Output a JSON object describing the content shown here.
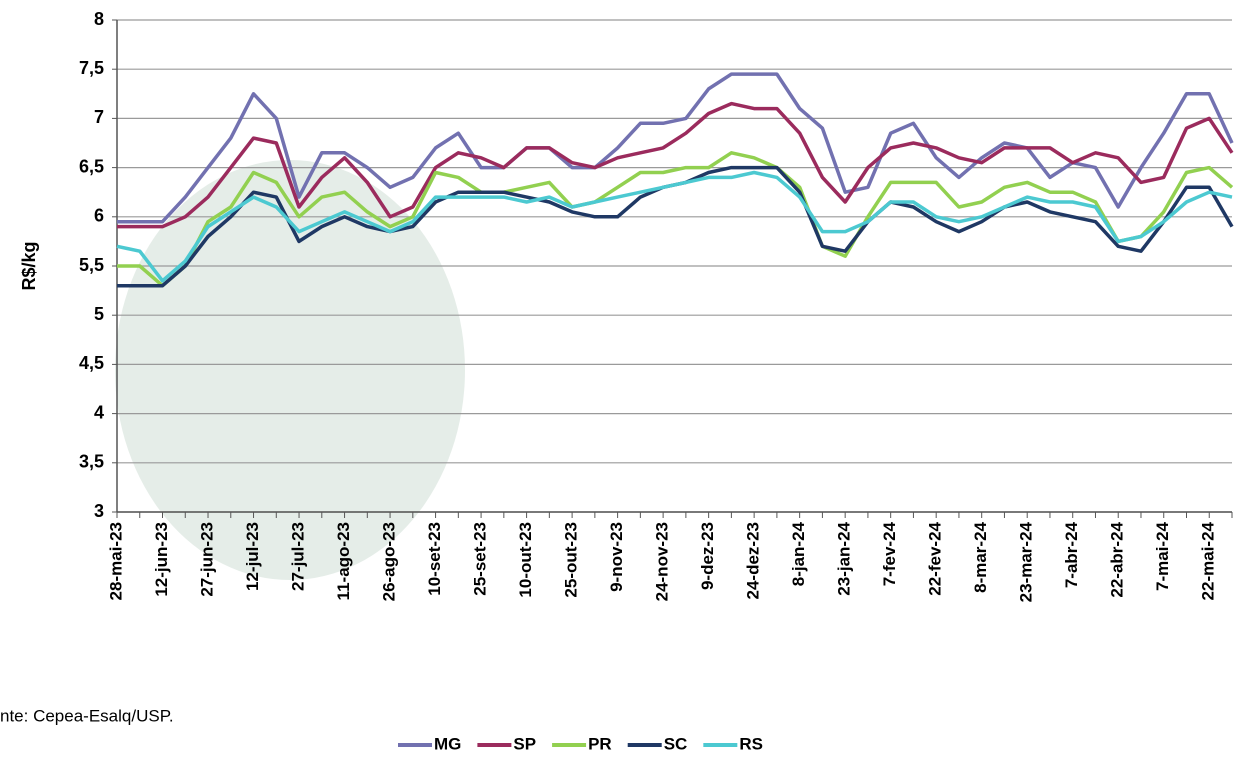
{
  "chart_data": {
    "type": "line",
    "y_label": "R$/kg",
    "source": "nte: Cepea-Esalq/USP.",
    "categories": [
      "28-mai-23",
      null,
      "12-jun-23",
      null,
      "27-jun-23",
      null,
      "12-jul-23",
      null,
      "27-jul-23",
      null,
      "11-ago-23",
      null,
      "26-ago-23",
      null,
      "10-set-23",
      null,
      "25-set-23",
      null,
      "10-out-23",
      null,
      "25-out-23",
      null,
      "9-nov-23",
      null,
      "24-nov-23",
      null,
      "9-dez-23",
      null,
      "24-dez-23",
      null,
      "8-jan-24",
      null,
      "23-jan-24",
      null,
      "7-fev-24",
      null,
      "22-fev-24",
      null,
      "8-mar-24",
      null,
      "23-mar-24",
      null,
      "7-abr-24",
      null,
      "22-abr-24",
      null,
      "7-mai-24",
      null,
      "22-mai-24",
      null
    ],
    "series": [
      {
        "name": "MG",
        "color": "#7271b0",
        "values": [
          5.95,
          5.95,
          5.95,
          6.2,
          6.5,
          6.8,
          7.25,
          7.0,
          6.2,
          6.65,
          6.65,
          6.5,
          6.3,
          6.4,
          6.7,
          6.85,
          6.5,
          6.5,
          6.7,
          6.7,
          6.5,
          6.5,
          6.7,
          6.95,
          6.95,
          7.0,
          7.3,
          7.45,
          7.45,
          7.45,
          7.1,
          6.9,
          6.25,
          6.3,
          6.85,
          6.95,
          6.6,
          6.4,
          6.6,
          6.75,
          6.7,
          6.4,
          6.55,
          6.5,
          6.1,
          6.5,
          6.85,
          7.25,
          7.25,
          6.75
        ]
      },
      {
        "name": "SP",
        "color": "#9b2b5d",
        "values": [
          5.9,
          5.9,
          5.9,
          6.0,
          6.2,
          6.5,
          6.8,
          6.75,
          6.1,
          6.4,
          6.6,
          6.35,
          6.0,
          6.1,
          6.5,
          6.65,
          6.6,
          6.5,
          6.7,
          6.7,
          6.55,
          6.5,
          6.6,
          6.65,
          6.7,
          6.85,
          7.05,
          7.15,
          7.1,
          7.1,
          6.85,
          6.4,
          6.15,
          6.5,
          6.7,
          6.75,
          6.7,
          6.6,
          6.55,
          6.7,
          6.7,
          6.7,
          6.55,
          6.65,
          6.6,
          6.35,
          6.4,
          6.9,
          7.0,
          6.65
        ]
      },
      {
        "name": "PR",
        "color": "#92d050",
        "values": [
          5.5,
          5.5,
          5.3,
          5.5,
          5.95,
          6.1,
          6.45,
          6.35,
          6.0,
          6.2,
          6.25,
          6.05,
          5.9,
          6.0,
          6.45,
          6.4,
          6.25,
          6.25,
          6.3,
          6.35,
          6.1,
          6.15,
          6.3,
          6.45,
          6.45,
          6.5,
          6.5,
          6.65,
          6.6,
          6.5,
          6.3,
          5.7,
          5.6,
          6.0,
          6.35,
          6.35,
          6.35,
          6.1,
          6.15,
          6.3,
          6.35,
          6.25,
          6.25,
          6.15,
          5.75,
          5.8,
          6.05,
          6.45,
          6.5,
          6.3
        ]
      },
      {
        "name": "SC",
        "color": "#1f3864",
        "values": [
          5.3,
          5.3,
          5.3,
          5.5,
          5.8,
          6.0,
          6.25,
          6.2,
          5.75,
          5.9,
          6.0,
          5.9,
          5.85,
          5.9,
          6.15,
          6.25,
          6.25,
          6.25,
          6.2,
          6.15,
          6.05,
          6.0,
          6.0,
          6.2,
          6.3,
          6.35,
          6.45,
          6.5,
          6.5,
          6.5,
          6.25,
          5.7,
          5.65,
          5.95,
          6.15,
          6.1,
          5.95,
          5.85,
          5.95,
          6.1,
          6.15,
          6.05,
          6.0,
          5.95,
          5.7,
          5.65,
          5.95,
          6.3,
          6.3,
          5.9
        ]
      },
      {
        "name": "RS",
        "color": "#4cc9d1",
        "values": [
          5.7,
          5.65,
          5.35,
          5.55,
          5.9,
          6.05,
          6.2,
          6.1,
          5.85,
          5.95,
          6.05,
          5.95,
          5.85,
          5.95,
          6.2,
          6.2,
          6.2,
          6.2,
          6.15,
          6.2,
          6.1,
          6.15,
          6.2,
          6.25,
          6.3,
          6.35,
          6.4,
          6.4,
          6.45,
          6.4,
          6.2,
          5.85,
          5.85,
          5.95,
          6.15,
          6.15,
          6.0,
          5.95,
          6.0,
          6.1,
          6.2,
          6.15,
          6.15,
          6.1,
          5.75,
          5.8,
          5.95,
          6.15,
          6.25,
          6.2
        ]
      }
    ],
    "ylim": [
      3,
      8
    ],
    "yticks": [
      3,
      {
        "value": 3.5,
        "label": "3,5"
      },
      4,
      {
        "value": 4.5,
        "label": "4,5"
      },
      5,
      {
        "value": 5.5,
        "label": "5,5"
      },
      6,
      {
        "value": 6.5,
        "label": "6,5"
      },
      7,
      {
        "value": 7.5,
        "label": "7,5"
      },
      8
    ],
    "grid": true
  }
}
